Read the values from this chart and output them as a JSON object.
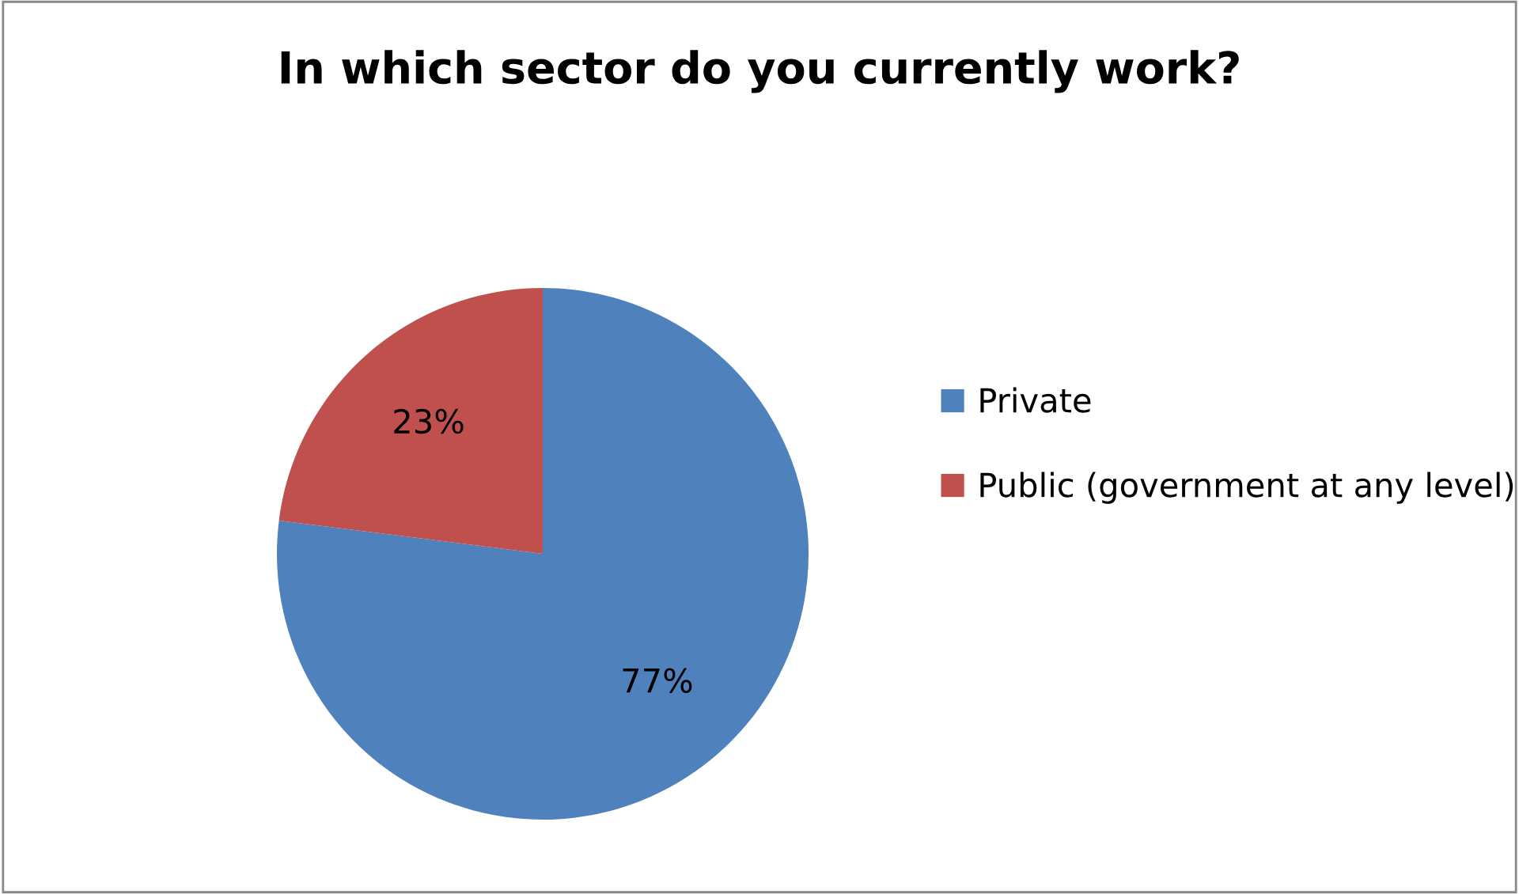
{
  "chart_data": {
    "type": "pie",
    "title": "In which sector do you currently work?",
    "categories": [
      "Private",
      "Public (government at any level)"
    ],
    "values": [
      77,
      23
    ],
    "colors": [
      "#4f81bd",
      "#c0504d"
    ],
    "value_labels": [
      "77%",
      "23%"
    ],
    "legend": "right"
  }
}
